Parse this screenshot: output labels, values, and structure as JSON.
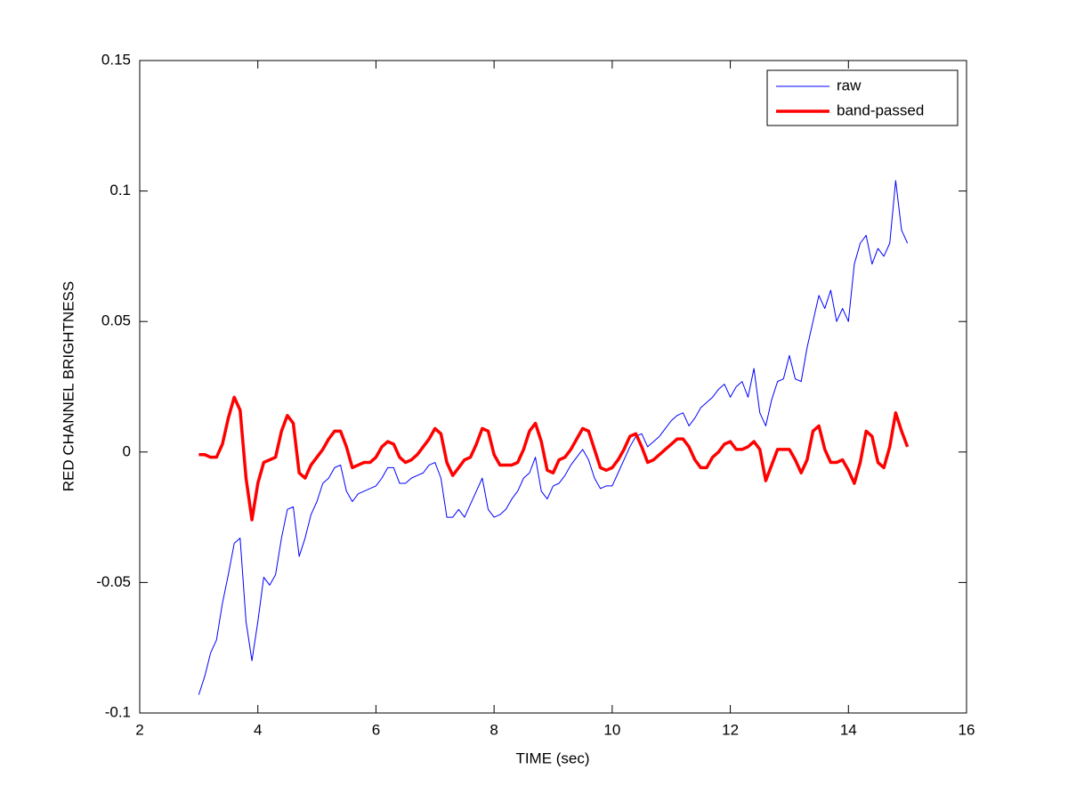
{
  "chart_data": {
    "type": "line",
    "xlabel": "TIME (sec)",
    "ylabel": "RED CHANNEL BRIGHTNESS",
    "xlim": [
      2,
      16
    ],
    "xticks": [
      2,
      4,
      6,
      8,
      10,
      12,
      14,
      16
    ],
    "ylim": [
      -0.1,
      0.15
    ],
    "yticks": [
      -0.1,
      -0.05,
      0,
      0.05,
      0.1,
      0.15
    ],
    "legend": "northeast",
    "x": [
      3.0,
      3.1,
      3.2,
      3.3,
      3.4,
      3.5,
      3.6,
      3.7,
      3.8,
      3.9,
      4.0,
      4.1,
      4.2,
      4.3,
      4.4,
      4.5,
      4.6,
      4.7,
      4.8,
      4.9,
      5.0,
      5.1,
      5.2,
      5.3,
      5.4,
      5.5,
      5.6,
      5.7,
      5.8,
      5.9,
      6.0,
      6.1,
      6.2,
      6.3,
      6.4,
      6.5,
      6.6,
      6.7,
      6.8,
      6.9,
      7.0,
      7.1,
      7.2,
      7.3,
      7.4,
      7.5,
      7.6,
      7.7,
      7.8,
      7.9,
      8.0,
      8.1,
      8.2,
      8.3,
      8.4,
      8.5,
      8.6,
      8.7,
      8.8,
      8.9,
      9.0,
      9.1,
      9.2,
      9.3,
      9.4,
      9.5,
      9.6,
      9.7,
      9.8,
      9.9,
      10.0,
      10.1,
      10.2,
      10.3,
      10.4,
      10.5,
      10.6,
      10.7,
      10.8,
      10.9,
      11.0,
      11.1,
      11.2,
      11.3,
      11.4,
      11.5,
      11.6,
      11.7,
      11.8,
      11.9,
      12.0,
      12.1,
      12.2,
      12.3,
      12.4,
      12.5,
      12.6,
      12.7,
      12.8,
      12.9,
      13.0,
      13.1,
      13.2,
      13.3,
      13.4,
      13.5,
      13.6,
      13.7,
      13.8,
      13.9,
      14.0,
      14.1,
      14.2,
      14.3,
      14.4,
      14.5,
      14.6,
      14.7,
      14.8,
      14.9,
      15.0
    ],
    "series": [
      {
        "name": "raw",
        "color": "#0000ff",
        "width": 1,
        "values": [
          -0.093,
          -0.086,
          -0.077,
          -0.072,
          -0.058,
          -0.047,
          -0.035,
          -0.033,
          -0.065,
          -0.08,
          -0.065,
          -0.048,
          -0.051,
          -0.047,
          -0.033,
          -0.022,
          -0.021,
          -0.04,
          -0.033,
          -0.024,
          -0.019,
          -0.012,
          -0.01,
          -0.006,
          -0.005,
          -0.015,
          -0.019,
          -0.016,
          -0.015,
          -0.014,
          -0.013,
          -0.01,
          -0.006,
          -0.006,
          -0.012,
          -0.012,
          -0.01,
          -0.009,
          -0.008,
          -0.005,
          -0.004,
          -0.01,
          -0.025,
          -0.025,
          -0.022,
          -0.025,
          -0.02,
          -0.015,
          -0.01,
          -0.022,
          -0.025,
          -0.024,
          -0.022,
          -0.018,
          -0.015,
          -0.01,
          -0.008,
          -0.002,
          -0.015,
          -0.018,
          -0.013,
          -0.012,
          -0.009,
          -0.005,
          -0.002,
          0.001,
          -0.003,
          -0.01,
          -0.014,
          -0.013,
          -0.013,
          -0.008,
          -0.003,
          0.002,
          0.006,
          0.007,
          0.002,
          0.004,
          0.006,
          0.009,
          0.012,
          0.014,
          0.015,
          0.01,
          0.013,
          0.017,
          0.019,
          0.021,
          0.024,
          0.026,
          0.021,
          0.025,
          0.027,
          0.021,
          0.032,
          0.015,
          0.01,
          0.02,
          0.027,
          0.028,
          0.037,
          0.028,
          0.027,
          0.04,
          0.05,
          0.06,
          0.055,
          0.062,
          0.05,
          0.055,
          0.05,
          0.072,
          0.08,
          0.083,
          0.072,
          0.078,
          0.075,
          0.08,
          0.104,
          0.085,
          0.08
        ]
      },
      {
        "name": "band-passed",
        "color": "#ff0000",
        "width": 3.5,
        "values": [
          -0.001,
          -0.001,
          -0.002,
          -0.002,
          0.003,
          0.013,
          0.021,
          0.016,
          -0.01,
          -0.026,
          -0.012,
          -0.004,
          -0.003,
          -0.002,
          0.008,
          0.014,
          0.011,
          -0.008,
          -0.01,
          -0.005,
          -0.002,
          0.001,
          0.005,
          0.008,
          0.008,
          0.002,
          -0.006,
          -0.005,
          -0.004,
          -0.004,
          -0.002,
          0.002,
          0.004,
          0.003,
          -0.002,
          -0.004,
          -0.003,
          -0.001,
          0.002,
          0.005,
          0.009,
          0.007,
          -0.004,
          -0.009,
          -0.006,
          -0.003,
          -0.002,
          0.003,
          0.009,
          0.008,
          -0.001,
          -0.005,
          -0.005,
          -0.005,
          -0.004,
          0.001,
          0.008,
          0.011,
          0.004,
          -0.007,
          -0.008,
          -0.003,
          -0.002,
          0.001,
          0.005,
          0.009,
          0.008,
          0.001,
          -0.006,
          -0.007,
          -0.006,
          -0.003,
          0.001,
          0.006,
          0.007,
          0.002,
          -0.004,
          -0.003,
          -0.001,
          0.001,
          0.003,
          0.005,
          0.005,
          0.002,
          -0.003,
          -0.006,
          -0.006,
          -0.002,
          0,
          0.003,
          0.004,
          0.001,
          0.001,
          0.002,
          0.004,
          0.001,
          -0.011,
          -0.005,
          0.001,
          0.001,
          0.001,
          -0.003,
          -0.008,
          -0.003,
          0.008,
          0.01,
          0.001,
          -0.004,
          -0.004,
          -0.003,
          -0.007,
          -0.012,
          -0.004,
          0.008,
          0.006,
          -0.004,
          -0.006,
          0.002,
          0.015,
          0.008,
          0.002
        ]
      }
    ]
  }
}
